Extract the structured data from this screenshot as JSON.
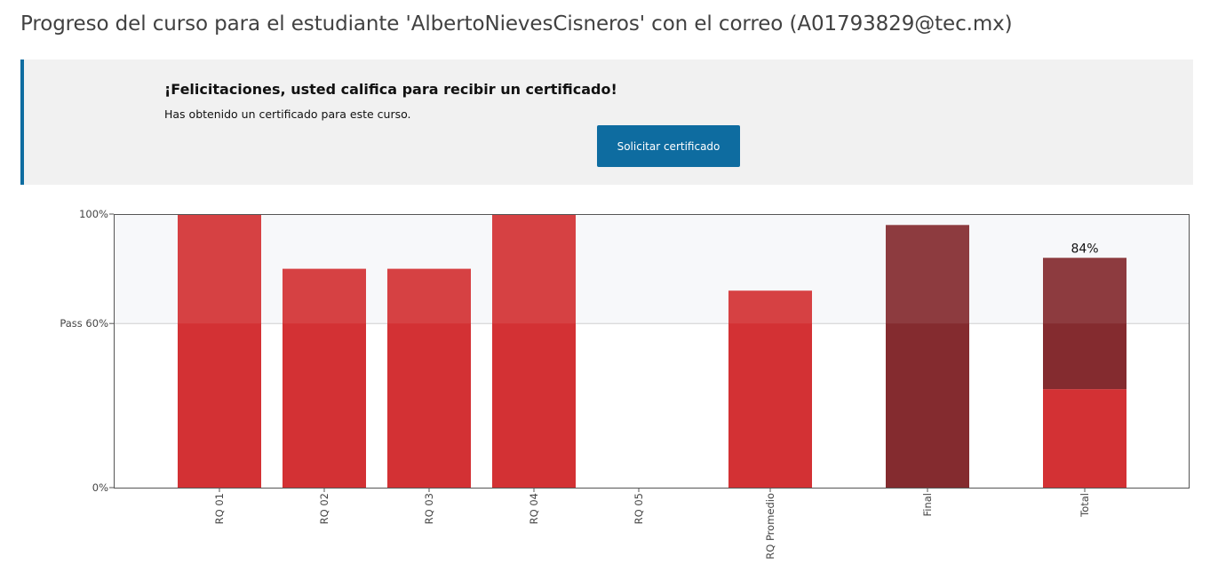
{
  "page": {
    "title": "Progreso del curso para el estudiante 'AlbertoNievesCisneros' con el correo (A01793829@tec.mx)"
  },
  "certificate": {
    "heading": "¡Felicitaciones, usted califica para recibir un certificado!",
    "message": "Has obtenido un certificado para este curso.",
    "button_label": "Solicitar certificado"
  },
  "chart_data": {
    "type": "bar",
    "categories": [
      "RQ 01",
      "RQ 02",
      "RQ 03",
      "RQ 04",
      "RQ 05",
      "RQ Promedio",
      "Final",
      "Total"
    ],
    "values": [
      100,
      80,
      80,
      100,
      0,
      72,
      96,
      84
    ],
    "stacked_total": {
      "category": "Total",
      "segments": [
        {
          "part": "assignments",
          "value": 36,
          "color": "#d33134"
        },
        {
          "part": "final",
          "value": 48,
          "color": "#842b2f"
        }
      ]
    },
    "data_labels": [
      {
        "category": "Total",
        "text": "84%"
      }
    ],
    "y_ticks": [
      {
        "value": 100,
        "label": "100%"
      },
      {
        "value": 60,
        "label": "Pass 60%"
      },
      {
        "value": 0,
        "label": "0%"
      }
    ],
    "ylim": [
      0,
      100
    ],
    "pass_threshold": 60,
    "colors": {
      "assignment": "#d33134",
      "final": "#842b2f",
      "pass_region": "#f7f8fa",
      "axis": "#555555"
    }
  }
}
